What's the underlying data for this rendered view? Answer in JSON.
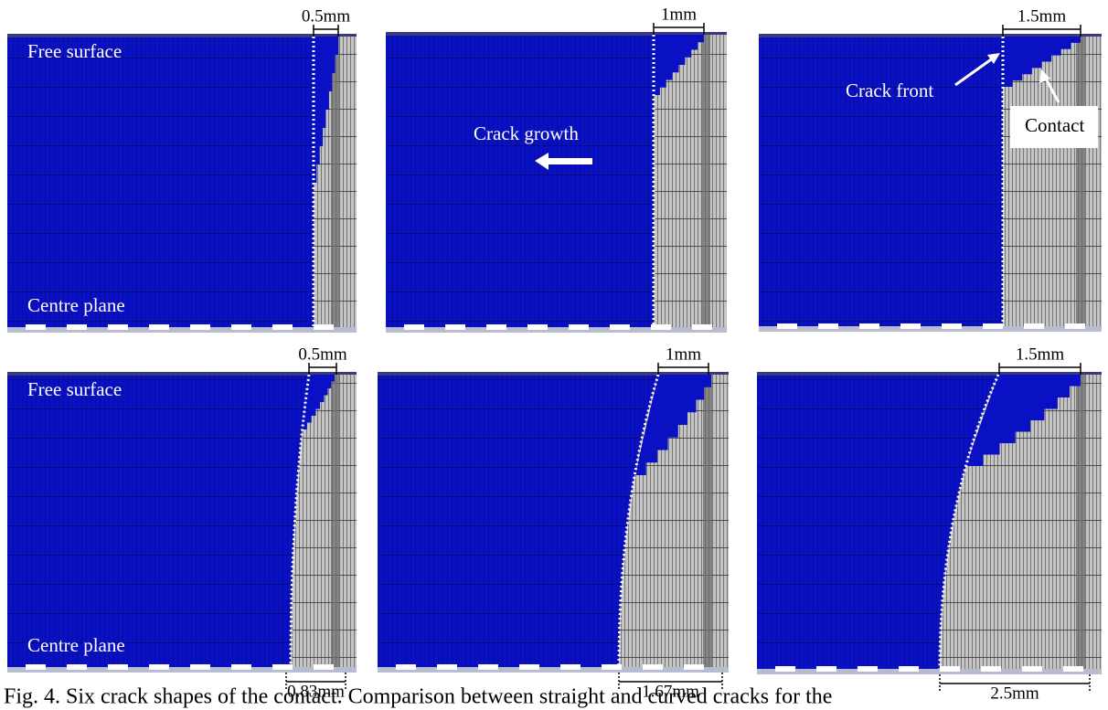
{
  "panels": [
    {
      "top_dimension": "0.5mm",
      "labels": [
        "Free surface",
        "Centre plane"
      ]
    },
    {
      "top_dimension": "1mm",
      "labels": [
        "Crack growth"
      ]
    },
    {
      "top_dimension": "1.5mm",
      "labels": [
        "Crack front",
        "Contact"
      ]
    },
    {
      "top_dimension": "0.5mm",
      "bottom_dimension": "0.83mm",
      "labels": [
        "Free surface",
        "Centre plane"
      ]
    },
    {
      "top_dimension": "1mm",
      "bottom_dimension": "1.67mm"
    },
    {
      "top_dimension": "1.5mm",
      "bottom_dimension": "2.5mm"
    }
  ],
  "caption": "Fig. 4. Six crack shapes of the contact. Comparison between straight and curved cracks for the"
}
